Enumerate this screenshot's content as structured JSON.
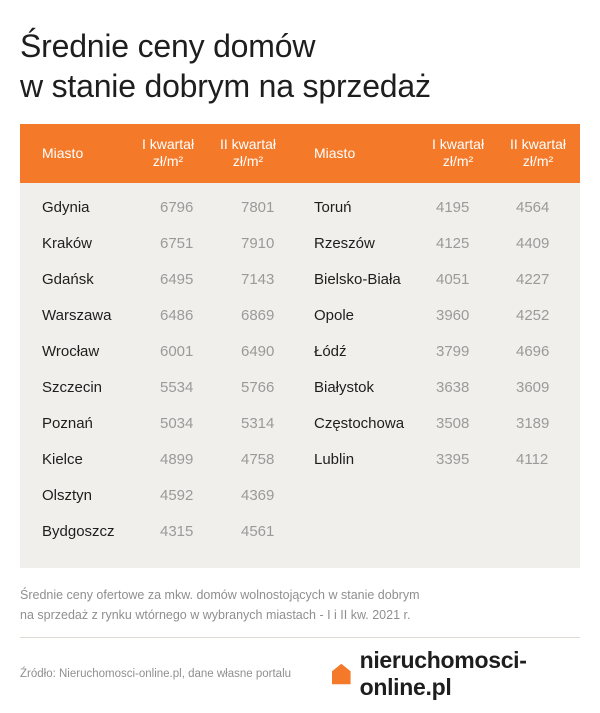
{
  "title": {
    "line1": "Średnie ceny domów",
    "line2": "w stanie dobrym na sprzedaż"
  },
  "table": {
    "headers": {
      "city": "Miasto",
      "q1_line1": "I kwartał",
      "q1_line2": "zł/m²",
      "q2_line1": "II kwartał",
      "q2_line2": "zł/m²"
    },
    "left": [
      {
        "city": "Gdynia",
        "q1": "6796",
        "q2": "7801"
      },
      {
        "city": "Kraków",
        "q1": "6751",
        "q2": "7910"
      },
      {
        "city": "Gdańsk",
        "q1": "6495",
        "q2": "7143"
      },
      {
        "city": "Warszawa",
        "q1": "6486",
        "q2": "6869"
      },
      {
        "city": "Wrocław",
        "q1": "6001",
        "q2": "6490"
      },
      {
        "city": "Szczecin",
        "q1": "5534",
        "q2": "5766"
      },
      {
        "city": "Poznań",
        "q1": "5034",
        "q2": "5314"
      },
      {
        "city": "Kielce",
        "q1": "4899",
        "q2": "4758"
      },
      {
        "city": "Olsztyn",
        "q1": "4592",
        "q2": "4369"
      },
      {
        "city": "Bydgoszcz",
        "q1": "4315",
        "q2": "4561"
      }
    ],
    "right": [
      {
        "city": "Toruń",
        "q1": "4195",
        "q2": "4564"
      },
      {
        "city": "Rzeszów",
        "q1": "4125",
        "q2": "4409"
      },
      {
        "city": "Bielsko-Biała",
        "q1": "4051",
        "q2": "4227"
      },
      {
        "city": "Opole",
        "q1": "3960",
        "q2": "4252"
      },
      {
        "city": "Łódź",
        "q1": "3799",
        "q2": "4696"
      },
      {
        "city": "Białystok",
        "q1": "3638",
        "q2": "3609"
      },
      {
        "city": "Częstochowa",
        "q1": "3508",
        "q2": "3189"
      },
      {
        "city": "Lublin",
        "q1": "3395",
        "q2": "4112"
      }
    ]
  },
  "footnote": {
    "line1": "Średnie ceny ofertowe za mkw. domów wolnostojących w stanie dobrym",
    "line2": "na sprzedaż z rynku wtórnego w wybranych miastach - I i II kw. 2021 r."
  },
  "source": "Źródło: Nieruchomosci-online.pl, dane własne portalu",
  "brand": {
    "name": "nieruchomosci-online.pl",
    "icon": "house-icon",
    "color": "#f47a2a"
  },
  "colors": {
    "header_bg": "#f47a2a",
    "table_bg": "#f1efeb"
  }
}
